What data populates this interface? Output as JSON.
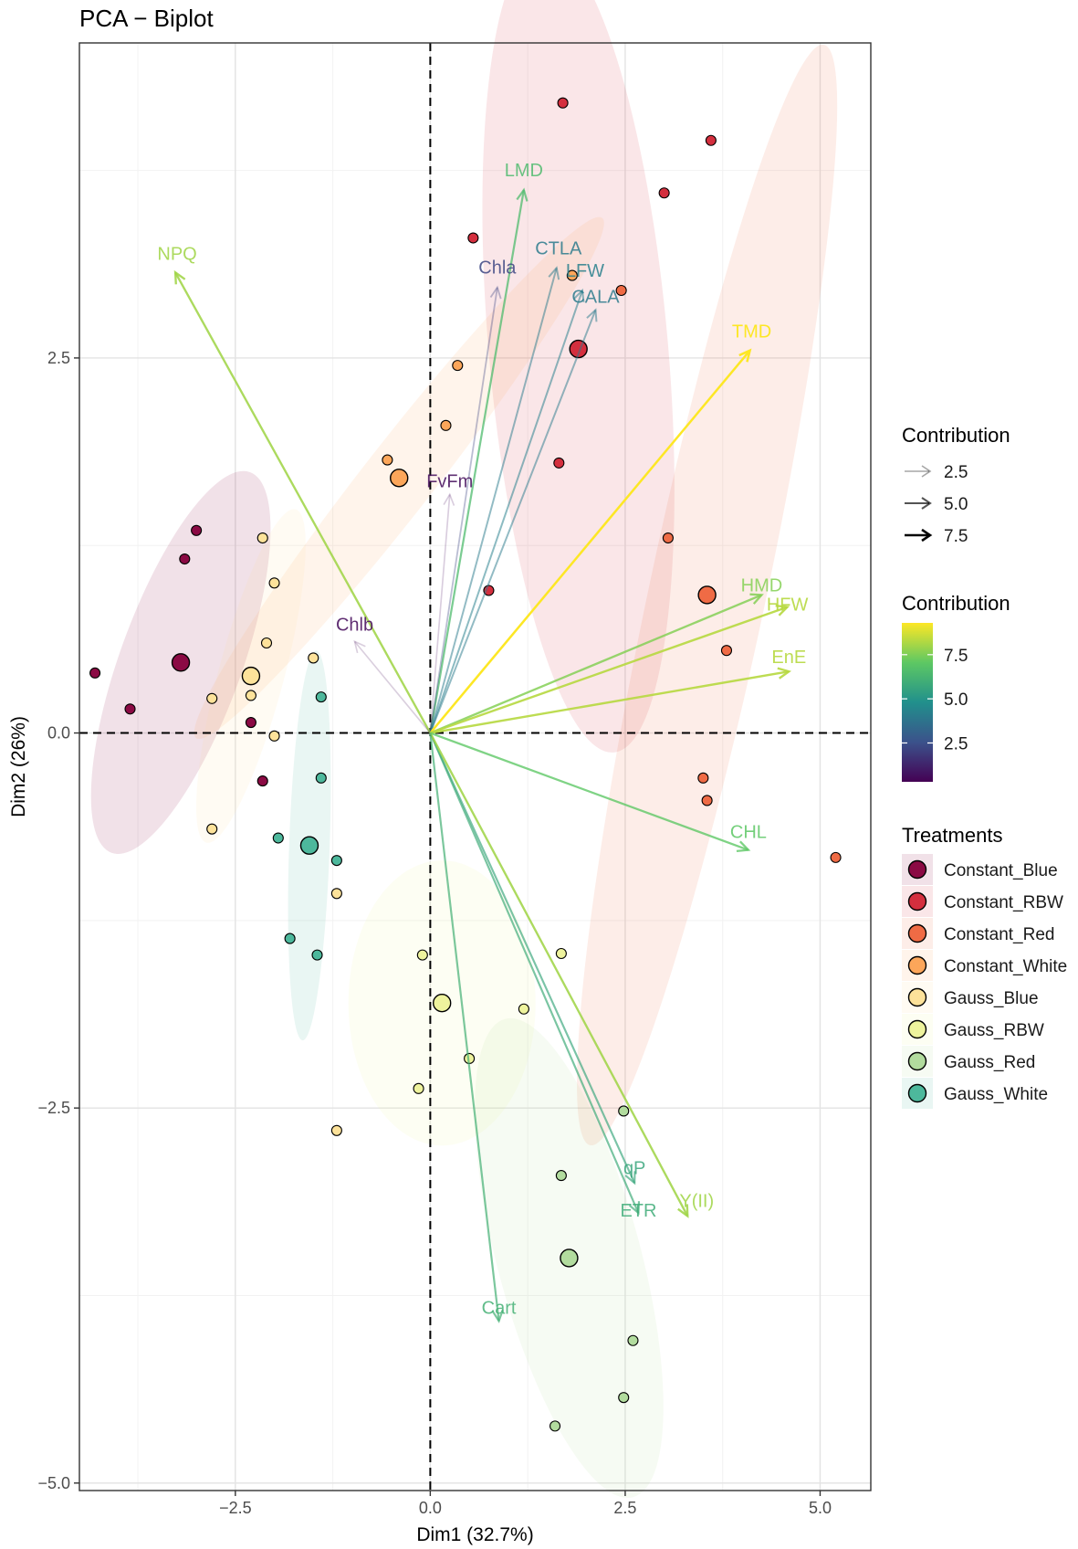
{
  "chart_data": {
    "type": "scatter",
    "title": "PCA − Biplot",
    "xlabel": "Dim1 (32.7%)",
    "ylabel": "Dim2 (26%)",
    "xlim": [
      -4.5,
      5.65
    ],
    "ylim": [
      -5.05,
      4.6
    ],
    "x_ticks": [
      {
        "value": -2.5,
        "label": "−2.5"
      },
      {
        "value": 0,
        "label": "0.0"
      },
      {
        "value": 2.5,
        "label": "2.5"
      },
      {
        "value": 5,
        "label": "5.0"
      }
    ],
    "y_ticks": [
      {
        "value": 2.5,
        "label": "2.5"
      },
      {
        "value": 0,
        "label": "0.0"
      },
      {
        "value": -2.5,
        "label": "−2.5"
      },
      {
        "value": -5,
        "label": "−5.0"
      }
    ],
    "grid": true,
    "groups": [
      {
        "name": "Constant_Blue",
        "color": "#8b0a44",
        "centroid": [
          -3.2,
          0.47
        ],
        "ellipse": {
          "cx": -3.2,
          "cy": 0.47,
          "rx": 0.78,
          "ry": 1.35,
          "angle": 20
        },
        "points": [
          [
            -3.0,
            1.35
          ],
          [
            -3.15,
            1.16
          ],
          [
            -4.3,
            0.4
          ],
          [
            -3.85,
            0.16
          ],
          [
            -2.3,
            0.07
          ],
          [
            -2.15,
            -0.32
          ]
        ]
      },
      {
        "name": "Constant_RBW",
        "color": "#d42f3e",
        "centroid": [
          1.9,
          2.56
        ],
        "ellipse": {
          "cx": 1.9,
          "cy": 2.56,
          "rx": 1.15,
          "ry": 2.7,
          "angle": -5
        },
        "points": [
          [
            1.7,
            4.2
          ],
          [
            3.6,
            3.95
          ],
          [
            0.55,
            3.3
          ],
          [
            3.0,
            3.6
          ],
          [
            1.65,
            1.8
          ],
          [
            0.75,
            0.95
          ]
        ]
      },
      {
        "name": "Constant_Red",
        "color": "#ef6b45",
        "centroid": [
          3.55,
          0.92
        ],
        "ellipse": {
          "cx": 3.55,
          "cy": 0.92,
          "rx": 0.75,
          "ry": 3.75,
          "angle": 12
        },
        "points": [
          [
            2.45,
            2.95
          ],
          [
            3.05,
            1.3
          ],
          [
            3.8,
            0.55
          ],
          [
            3.5,
            -0.3
          ],
          [
            3.55,
            -0.45
          ],
          [
            5.2,
            -0.83
          ]
        ]
      },
      {
        "name": "Constant_White",
        "color": "#fca65a",
        "centroid": [
          -0.4,
          1.7
        ],
        "ellipse": {
          "cx": -0.4,
          "cy": 1.7,
          "rx": 0.45,
          "ry": 2.2,
          "angle": 38
        },
        "points": [
          [
            1.82,
            3.05
          ],
          [
            0.35,
            2.45
          ],
          [
            0.2,
            2.05
          ],
          [
            -0.55,
            1.82
          ]
        ]
      },
      {
        "name": "Gauss_Blue",
        "color": "#fde29a",
        "centroid": [
          -2.3,
          0.38
        ],
        "ellipse": {
          "cx": -2.3,
          "cy": 0.38,
          "rx": 0.42,
          "ry": 1.15,
          "angle": 15
        },
        "points": [
          [
            -2.15,
            1.3
          ],
          [
            -2.0,
            1.0
          ],
          [
            -2.1,
            0.6
          ],
          [
            -1.5,
            0.5
          ],
          [
            -2.8,
            0.23
          ],
          [
            -2.3,
            0.25
          ],
          [
            -2.0,
            -0.02
          ],
          [
            -2.8,
            -0.64
          ],
          [
            -1.2,
            -1.07
          ],
          [
            -1.2,
            -2.65
          ]
        ]
      },
      {
        "name": "Gauss_RBW",
        "color": "#eef39d",
        "centroid": [
          0.15,
          -1.8
        ],
        "ellipse": {
          "cx": 0.15,
          "cy": -1.8,
          "rx": 1.2,
          "ry": 0.95,
          "angle": 0
        },
        "points": [
          [
            -0.1,
            -1.48
          ],
          [
            1.68,
            -1.47
          ],
          [
            1.2,
            -1.84
          ],
          [
            0.5,
            -2.17
          ],
          [
            -0.15,
            -2.37
          ]
        ]
      },
      {
        "name": "Gauss_Red",
        "color": "#b2dc9e",
        "centroid": [
          1.78,
          -3.5
        ],
        "ellipse": {
          "cx": 1.78,
          "cy": -3.5,
          "rx": 0.92,
          "ry": 1.65,
          "angle": -15
        },
        "points": [
          [
            2.48,
            -2.52
          ],
          [
            1.68,
            -2.95
          ],
          [
            2.6,
            -4.05
          ],
          [
            2.48,
            -4.43
          ],
          [
            1.6,
            -4.62
          ]
        ]
      },
      {
        "name": "Gauss_White",
        "color": "#4db89c",
        "centroid": [
          -1.55,
          -0.75
        ],
        "ellipse": {
          "cx": -1.55,
          "cy": -0.75,
          "rx": 0.26,
          "ry": 1.3,
          "angle": 2
        },
        "points": [
          [
            -1.4,
            0.24
          ],
          [
            -1.4,
            -0.3
          ],
          [
            -1.95,
            -0.7
          ],
          [
            -1.2,
            -0.85
          ],
          [
            -1.8,
            -1.37
          ],
          [
            -1.45,
            -1.48
          ]
        ]
      }
    ],
    "variables": [
      {
        "name": "NPQ",
        "x": -3.27,
        "y": 3.07,
        "contrib": 8.0
      },
      {
        "name": "LMD",
        "x": 1.2,
        "y": 3.62,
        "contrib": 6.5
      },
      {
        "name": "Chla",
        "x": 0.86,
        "y": 2.97,
        "contrib": 2.2
      },
      {
        "name": "CTLA",
        "x": 1.62,
        "y": 3.1,
        "contrib": 4.0
      },
      {
        "name": "LFW",
        "x": 1.95,
        "y": 2.95,
        "contrib": 4.2
      },
      {
        "name": "CALA",
        "x": 2.12,
        "y": 2.82,
        "contrib": 4.0
      },
      {
        "name": "TMD",
        "x": 4.1,
        "y": 2.55,
        "contrib": 9.3
      },
      {
        "name": "FvFm",
        "x": 0.25,
        "y": 1.59,
        "contrib": 0.6
      },
      {
        "name": "Chlb",
        "x": -0.97,
        "y": 0.61,
        "contrib": 0.5
      },
      {
        "name": "HMD",
        "x": 4.25,
        "y": 0.92,
        "contrib": 7.6
      },
      {
        "name": "HFW",
        "x": 4.58,
        "y": 0.84,
        "contrib": 8.3
      },
      {
        "name": "EnE",
        "x": 4.6,
        "y": 0.41,
        "contrib": 8.3
      },
      {
        "name": "CHL",
        "x": 4.08,
        "y": -0.78,
        "contrib": 7.0
      },
      {
        "name": "qP",
        "x": 2.62,
        "y": -3.0,
        "contrib": 5.7
      },
      {
        "name": "ETR",
        "x": 2.67,
        "y": -3.2,
        "contrib": 5.9
      },
      {
        "name": "Y(II)",
        "x": 3.3,
        "y": -3.22,
        "contrib": 8.0
      },
      {
        "name": "Cart",
        "x": 0.88,
        "y": -3.92,
        "contrib": 6.1
      }
    ],
    "legend": {
      "position": "right",
      "size_title": "Contribution",
      "size_entries": [
        {
          "label": "2.5",
          "value": 2.5
        },
        {
          "label": "5.0",
          "value": 5.0
        },
        {
          "label": "7.5",
          "value": 7.5
        }
      ],
      "color_title": "Contribution",
      "color_range": [
        0.3,
        9.3
      ],
      "color_ticks": [
        {
          "label": "7.5",
          "value": 7.5
        },
        {
          "label": "5.0",
          "value": 5.0
        },
        {
          "label": "2.5",
          "value": 2.5
        }
      ],
      "groups_title": "Treatments"
    }
  }
}
